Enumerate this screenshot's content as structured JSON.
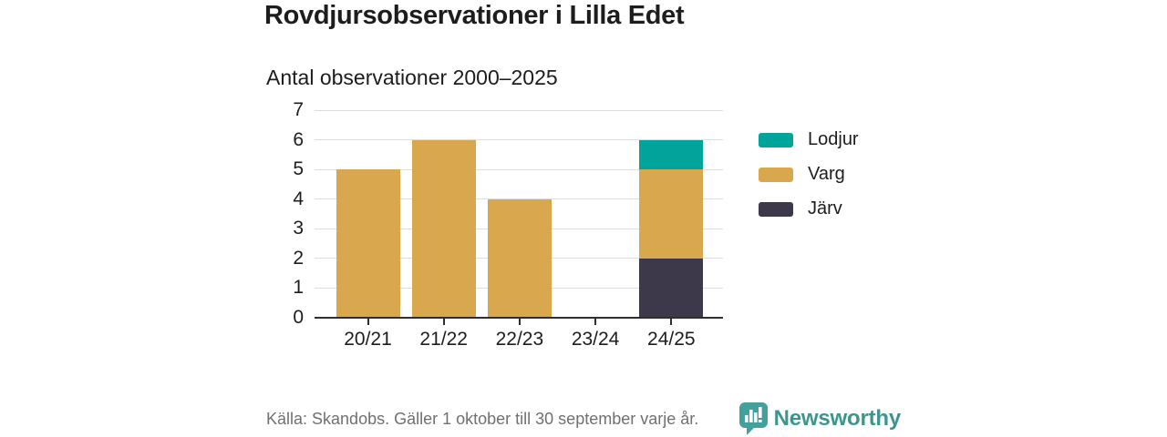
{
  "header": {
    "title": "Rovdjursobservationer i Lilla Edet",
    "subtitle": "Antal observationer 2000–2025"
  },
  "footer": {
    "source": "Källa: Skandobs. Gäller 1 oktober till 30 september varje år.",
    "brand": "Newsworthy"
  },
  "colors": {
    "teal": "#00a49a",
    "gold": "#d9a84e",
    "dark": "#3d394b",
    "grid": "#dddddd",
    "axis": "#2f2f2f",
    "text": "#1d1d1b",
    "muted": "#70706f",
    "brand_teal": "#3d968e",
    "logo_teal": "#43a09b"
  },
  "chart_data": {
    "type": "bar",
    "stacked": true,
    "title": "Antal observationer 2000–2025",
    "categories": [
      "20/21",
      "21/22",
      "22/23",
      "23/24",
      "24/25"
    ],
    "series": [
      {
        "name": "Lodjur",
        "color": "#00a49a",
        "values": [
          0,
          0,
          0,
          0,
          1
        ]
      },
      {
        "name": "Varg",
        "color": "#d9a84e",
        "values": [
          5,
          6,
          4,
          0,
          3
        ]
      },
      {
        "name": "Järv",
        "color": "#3d394b",
        "values": [
          0,
          0,
          0,
          0,
          2
        ]
      }
    ],
    "stack_order_bottom_to_top": [
      "Järv",
      "Varg",
      "Lodjur"
    ],
    "ylim": [
      0,
      7
    ],
    "yticks": [
      0,
      1,
      2,
      3,
      4,
      5,
      6,
      7
    ],
    "grid": true,
    "legend_position": "right",
    "xlabel": "",
    "ylabel": ""
  }
}
